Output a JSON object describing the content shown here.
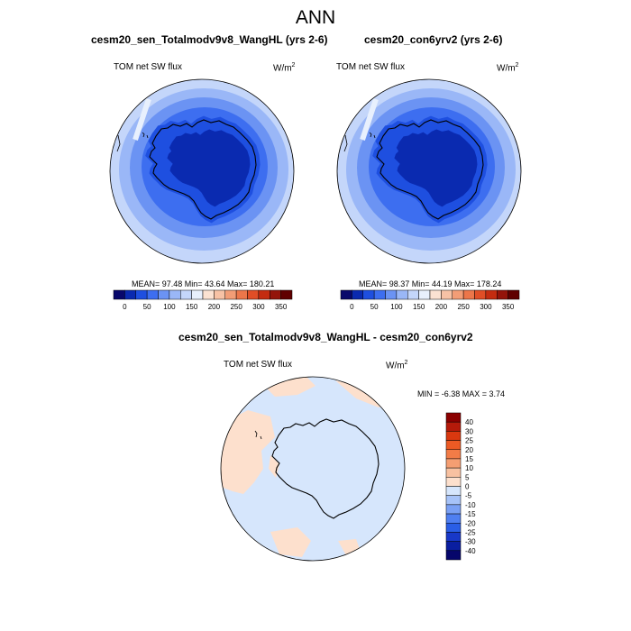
{
  "figure": {
    "title": "ANN"
  },
  "panels": [
    {
      "title": "cesm20_sen_Totalmodv9v8_WangHL (yrs 2-6)",
      "variable": "TOM net SW flux",
      "unit": "W/m",
      "unit_power": "2",
      "stats": "MEAN=  97.48  Min=  43.64  Max= 180.21"
    },
    {
      "title": "cesm20_con6yrv2 (yrs 2-6)",
      "variable": "TOM net SW flux",
      "unit": "W/m",
      "unit_power": "2",
      "stats": "MEAN=  98.37  Min=  44.19  Max= 178.24"
    },
    {
      "title": "cesm20_sen_Totalmodv9v8_WangHL - cesm20_con6yrv2",
      "variable": "TOM net SW flux",
      "unit": "W/m",
      "unit_power": "2",
      "stats": "MIN =  -6.38 MAX =   3.74"
    }
  ],
  "colorbar_field": {
    "ticks": [
      "0",
      "50",
      "100",
      "150",
      "200",
      "250",
      "300",
      "350"
    ],
    "colors": [
      "#08086b",
      "#0a2ab0",
      "#1e4fe0",
      "#3d6ef0",
      "#6b93f3",
      "#9ab7f7",
      "#c4d6fa",
      "#e8f0fd",
      "#fbe2d2",
      "#f7c2a5",
      "#f29d76",
      "#ec764a",
      "#e04e26",
      "#c42c10",
      "#94140a",
      "#600000"
    ]
  },
  "colorbar_diff": {
    "labels": [
      "40",
      "30",
      "25",
      "20",
      "15",
      "10",
      "5",
      "0",
      "-5",
      "-10",
      "-15",
      "-20",
      "-25",
      "-30",
      "-40"
    ],
    "colors": [
      "#8b0000",
      "#b51a0a",
      "#d9380f",
      "#ec5a24",
      "#f27c47",
      "#f59e72",
      "#f8c1a1",
      "#fde0cd",
      "#d6e6fc",
      "#a7c3f8",
      "#7aa0f4",
      "#4f7ff1",
      "#2a5ee6",
      "#1838c8",
      "#0a1ea0",
      "#06066b"
    ]
  }
}
